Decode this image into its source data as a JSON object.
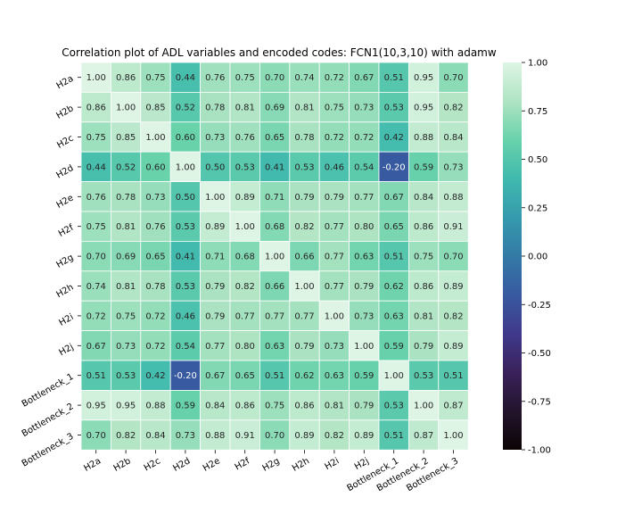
{
  "chart_data": {
    "type": "heatmap",
    "title": "Correlation plot of ADL variables and encoded codes: FCN1(10,3,10) with adamw",
    "labels": [
      "H2a",
      "H2b",
      "H2c",
      "H2d",
      "H2e",
      "H2f",
      "H2g",
      "H2h",
      "H2i",
      "H2j",
      "Bottleneck_1",
      "Bottleneck_2",
      "Bottleneck_3"
    ],
    "values": [
      [
        1.0,
        0.86,
        0.75,
        0.44,
        0.76,
        0.75,
        0.7,
        0.74,
        0.72,
        0.67,
        0.51,
        0.95,
        0.7
      ],
      [
        0.86,
        1.0,
        0.85,
        0.52,
        0.78,
        0.81,
        0.69,
        0.81,
        0.75,
        0.73,
        0.53,
        0.95,
        0.82
      ],
      [
        0.75,
        0.85,
        1.0,
        0.6,
        0.73,
        0.76,
        0.65,
        0.78,
        0.72,
        0.72,
        0.42,
        0.88,
        0.84
      ],
      [
        0.44,
        0.52,
        0.6,
        1.0,
        0.5,
        0.53,
        0.41,
        0.53,
        0.46,
        0.54,
        -0.2,
        0.59,
        0.73
      ],
      [
        0.76,
        0.78,
        0.73,
        0.5,
        1.0,
        0.89,
        0.71,
        0.79,
        0.79,
        0.77,
        0.67,
        0.84,
        0.88
      ],
      [
        0.75,
        0.81,
        0.76,
        0.53,
        0.89,
        1.0,
        0.68,
        0.82,
        0.77,
        0.8,
        0.65,
        0.86,
        0.91
      ],
      [
        0.7,
        0.69,
        0.65,
        0.41,
        0.71,
        0.68,
        1.0,
        0.66,
        0.77,
        0.63,
        0.51,
        0.75,
        0.7
      ],
      [
        0.74,
        0.81,
        0.78,
        0.53,
        0.79,
        0.82,
        0.66,
        1.0,
        0.77,
        0.79,
        0.62,
        0.86,
        0.89
      ],
      [
        0.72,
        0.75,
        0.72,
        0.46,
        0.79,
        0.77,
        0.77,
        0.77,
        1.0,
        0.73,
        0.63,
        0.81,
        0.82
      ],
      [
        0.67,
        0.73,
        0.72,
        0.54,
        0.77,
        0.8,
        0.63,
        0.79,
        0.73,
        1.0,
        0.59,
        0.79,
        0.89
      ],
      [
        0.51,
        0.53,
        0.42,
        -0.2,
        0.67,
        0.65,
        0.51,
        0.62,
        0.63,
        0.59,
        1.0,
        0.53,
        0.51
      ],
      [
        0.95,
        0.95,
        0.88,
        0.59,
        0.84,
        0.86,
        0.75,
        0.86,
        0.81,
        0.79,
        0.53,
        1.0,
        0.87
      ],
      [
        0.7,
        0.82,
        0.84,
        0.73,
        0.88,
        0.91,
        0.7,
        0.89,
        0.82,
        0.89,
        0.51,
        0.87,
        1.0
      ]
    ],
    "vmin": -1.0,
    "vmax": 1.0,
    "colorbar_ticks": [
      1.0,
      0.75,
      0.5,
      0.25,
      0.0,
      -0.25,
      -0.5,
      -0.75,
      -1.0
    ],
    "colormap": "mako",
    "annotate": true,
    "cell_border_color": "#ffffff",
    "legend": "colorbar-right"
  }
}
